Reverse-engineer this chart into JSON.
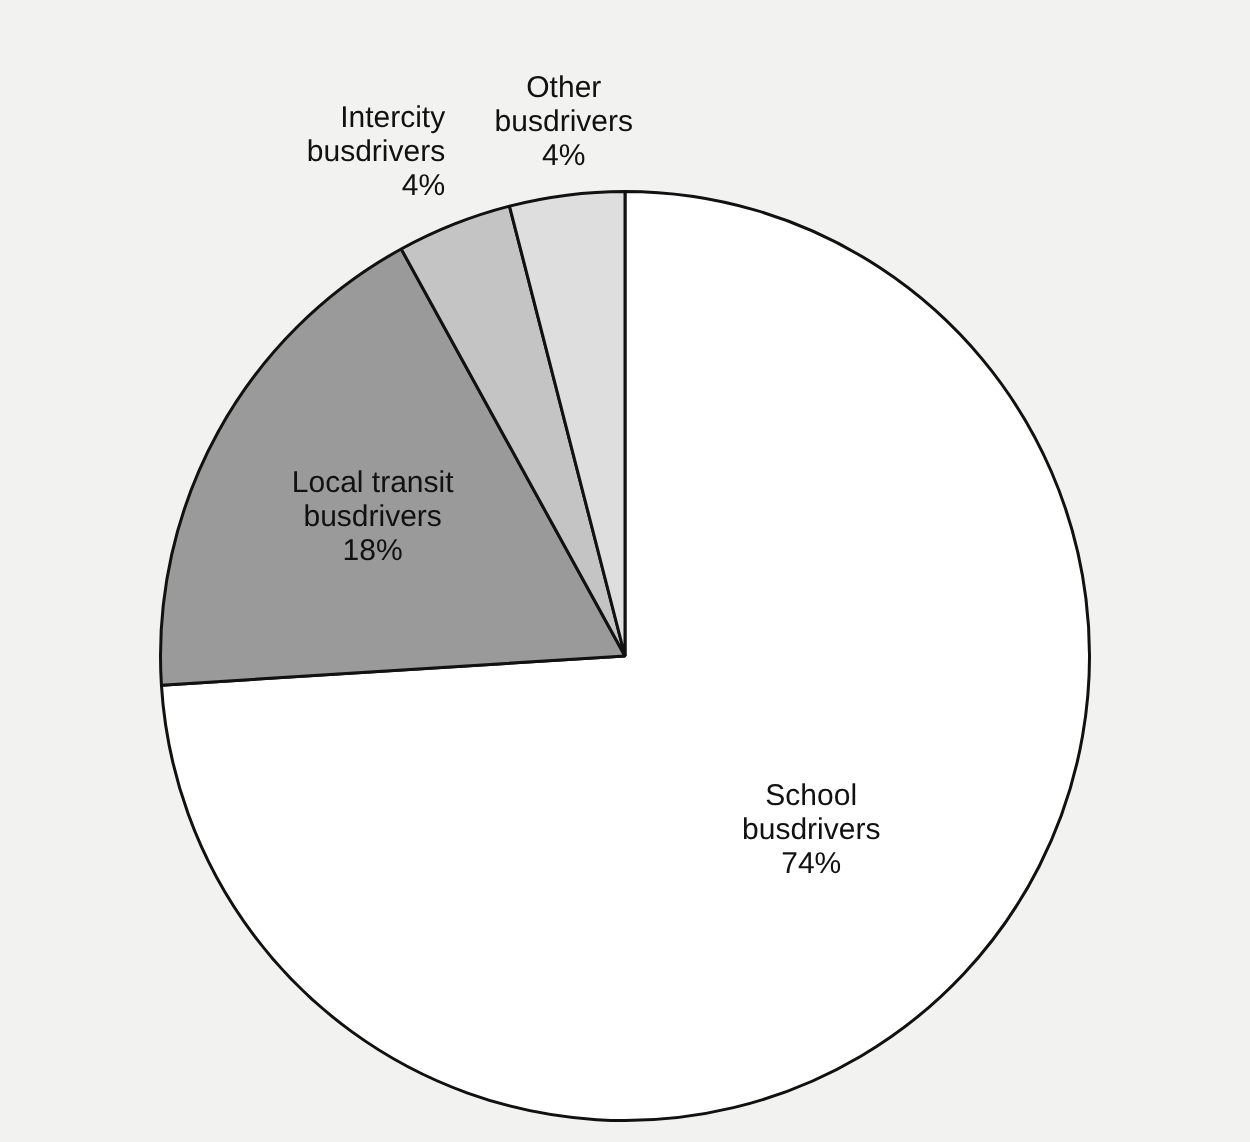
{
  "chart_data": {
    "type": "pie",
    "categories": [
      "School busdrivers",
      "Local transit busdrivers",
      "Intercity busdrivers",
      "Other busdrivers"
    ],
    "values": [
      74,
      18,
      4,
      4
    ],
    "value_labels": [
      "74%",
      "18%",
      "4%",
      "4%"
    ],
    "colors": [
      "#ffffff",
      "#9a9a9a",
      "#c4c4c4",
      "#dedede"
    ],
    "legend": false
  }
}
